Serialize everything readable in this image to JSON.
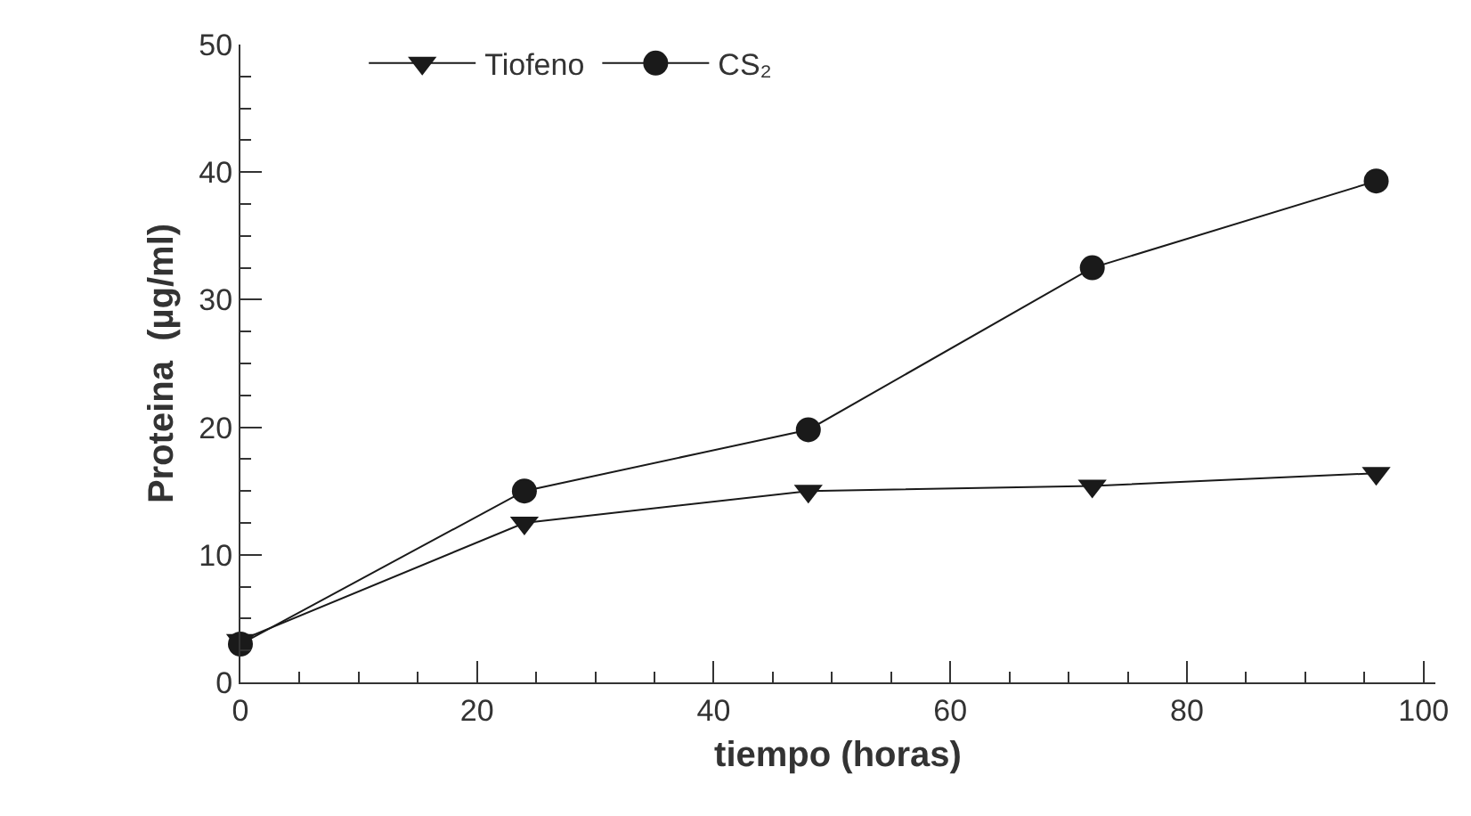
{
  "chart_data": {
    "type": "line",
    "xlabel": "tiempo (horas)",
    "ylabel": "Proteina  (µg/ml)",
    "x": [
      0,
      24,
      48,
      72,
      96
    ],
    "series": [
      {
        "name": "Tiofeno",
        "color": "#1a1a1a",
        "marker": "triangle",
        "values": [
          3.3,
          12.5,
          15,
          15.4,
          16.4
        ]
      },
      {
        "name": "CS₂",
        "color": "#1a1a1a",
        "marker": "circle",
        "values": [
          3,
          15,
          19.8,
          32.5,
          39.3
        ]
      }
    ],
    "xlim": [
      0,
      101
    ],
    "ylim": [
      0,
      50
    ],
    "xticks": [
      0,
      {
        "value": 5,
        "label": null
      },
      {
        "value": 10,
        "label": null
      },
      {
        "value": 15,
        "label": null
      },
      20,
      {
        "value": 25,
        "label": null
      },
      {
        "value": 30,
        "label": null
      },
      {
        "value": 35,
        "label": null
      },
      40,
      {
        "value": 45,
        "label": null
      },
      {
        "value": 50,
        "label": null
      },
      {
        "value": 55,
        "label": null
      },
      60,
      {
        "value": 65,
        "label": null
      },
      {
        "value": 70,
        "label": null
      },
      {
        "value": 75,
        "label": null
      },
      80,
      {
        "value": 85,
        "label": null
      },
      {
        "value": 90,
        "label": null
      },
      {
        "value": 95,
        "label": null
      },
      100
    ],
    "yticks": [
      0,
      {
        "value": 2.5,
        "label": null
      },
      {
        "value": 5,
        "label": null
      },
      {
        "value": 7.5,
        "label": null
      },
      10,
      {
        "value": 12.5,
        "label": null
      },
      {
        "value": 15,
        "label": null
      },
      {
        "value": 17.5,
        "label": null
      },
      20,
      {
        "value": 22.5,
        "label": null
      },
      {
        "value": 25,
        "label": null
      },
      {
        "value": 27.5,
        "label": null
      },
      30,
      {
        "value": 32.5,
        "label": null
      },
      {
        "value": 35,
        "label": null
      },
      {
        "value": 37.5,
        "label": null
      },
      40,
      {
        "value": 42.5,
        "label": null
      },
      {
        "value": 45,
        "label": null
      },
      {
        "value": 47.5,
        "label": null
      },
      50
    ],
    "legend": "top left",
    "grid": false,
    "line_style": "solid"
  }
}
